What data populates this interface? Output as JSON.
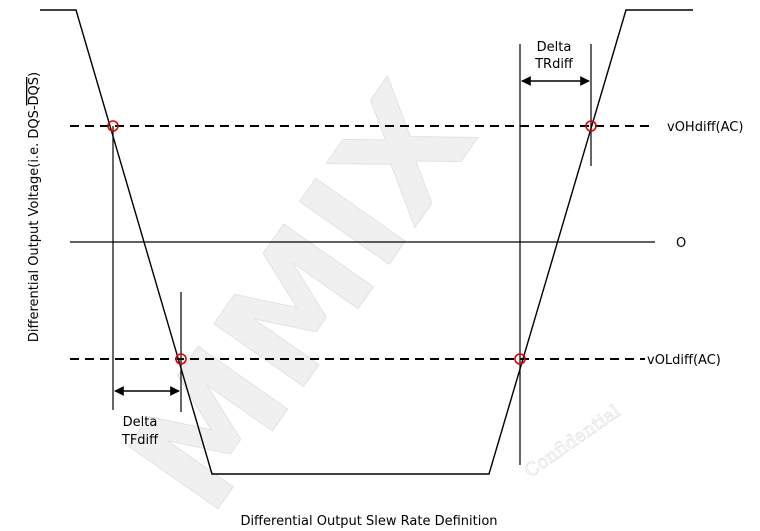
{
  "labels": {
    "delta_tr_line1": "Delta",
    "delta_tr_line2": "TRdiff",
    "delta_tf_line1": "Delta",
    "delta_tf_line2": "TFdiff",
    "voh": "vOHdiff(AC)",
    "vol": "vOLdiff(AC)",
    "zero": "O",
    "y_axis_prefix": "Differential Output Voltage(i.e. DQS-",
    "y_axis_overlined": "DQS",
    "y_axis_suffix": ")",
    "caption": "Differential Output Slew Rate Definition"
  },
  "watermark": {
    "text": "MMIX",
    "subtext": "Confidential"
  },
  "colors": {
    "line": "#000000",
    "marker": "#e00000",
    "watermark_fill": "#f0f0f0",
    "watermark_stroke": "#e2e2e2"
  }
}
